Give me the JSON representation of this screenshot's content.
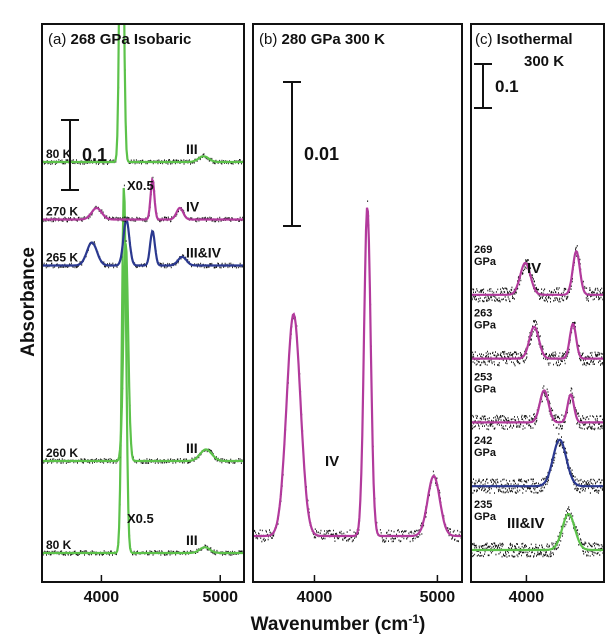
{
  "figure": {
    "ylabel": "Absorbance",
    "xlabel": "Wavenumber (cm",
    "xlabel_sup": "-1",
    "xlabel_end": ")"
  },
  "chart_data": [
    {
      "type": "line",
      "panel": "(a)",
      "title": "268 GPa Isobaric",
      "xlim": [
        3500,
        5200
      ],
      "xticks": [
        4000,
        5000
      ],
      "scale_bar": {
        "label": "0.1",
        "value": 0.1
      },
      "series": [
        {
          "label": "80 K",
          "phase": "III",
          "factor": "X0.5",
          "color": "#5cc24a",
          "offset": 0.0,
          "peaks": [
            [
              4190,
              0.64,
              25
            ],
            [
              4870,
              0.01,
              60
            ]
          ]
        },
        {
          "label": "260 K",
          "phase": "III",
          "factor": "",
          "color": "#5cc24a",
          "offset": 0.16,
          "peaks": [
            [
              4205,
              0.38,
              28
            ],
            [
              4880,
              0.02,
              70
            ]
          ]
        },
        {
          "label": "265 K",
          "phase": "III&IV",
          "factor": "",
          "color": "#2b3990",
          "offset": 0.5,
          "peaks": [
            [
              3920,
              0.04,
              60
            ],
            [
              4210,
              0.08,
              35
            ],
            [
              4430,
              0.06,
              28
            ],
            [
              4680,
              0.015,
              50
            ]
          ]
        },
        {
          "label": "270 K",
          "phase": "IV",
          "factor": "",
          "color": "#b23a9c",
          "offset": 0.58,
          "peaks": [
            [
              3960,
              0.02,
              60
            ],
            [
              4430,
              0.07,
              22
            ],
            [
              4660,
              0.02,
              40
            ]
          ]
        },
        {
          "label": "80 K",
          "phase": "III",
          "factor": "X0.5",
          "color": "#5cc24a",
          "offset": 0.68,
          "peaks": [
            [
              4170,
              0.7,
              22
            ],
            [
              4860,
              0.01,
              60
            ]
          ]
        }
      ]
    },
    {
      "type": "line",
      "panel": "(b)",
      "title": "280 GPa 300 K",
      "xlim": [
        3500,
        5200
      ],
      "xticks": [
        4000,
        5000
      ],
      "scale_bar": {
        "label": "0.01",
        "value": 0.01
      },
      "series": [
        {
          "label": "",
          "phase": "IV",
          "factor": "",
          "color": "#b23a9c",
          "offset": 0.0,
          "peaks": [
            [
              3830,
              0.0185,
              80
            ],
            [
              4430,
              0.0275,
              38
            ],
            [
              4970,
              0.005,
              70
            ]
          ]
        }
      ]
    },
    {
      "type": "line",
      "panel": "(c)",
      "title": "Isothermal",
      "subtitle": "300 K",
      "xlim": [
        3500,
        4700
      ],
      "xticks": [
        4000
      ],
      "scale_bar": {
        "label": "0.1",
        "value": 0.1
      },
      "series": [
        {
          "label": "235\nGPa",
          "phase": "III&IV",
          "factor": "",
          "color": "#5cc24a",
          "offset": 0.0,
          "peaks": [
            [
              4380,
              0.062,
              80
            ]
          ]
        },
        {
          "label": "242\nGPa",
          "phase": "",
          "factor": "",
          "color": "#2b3990",
          "offset": 0.11,
          "peaks": [
            [
              4300,
              0.08,
              85
            ]
          ]
        },
        {
          "label": "253\nGPa",
          "phase": "",
          "factor": "",
          "color": "#b23a9c",
          "offset": 0.22,
          "peaks": [
            [
              4160,
              0.055,
              55
            ],
            [
              4400,
              0.048,
              40
            ]
          ]
        },
        {
          "label": "263\nGPa",
          "phase": "",
          "factor": "",
          "color": "#b23a9c",
          "offset": 0.33,
          "peaks": [
            [
              4070,
              0.055,
              60
            ],
            [
              4420,
              0.06,
              40
            ]
          ]
        },
        {
          "label": "269\nGPa",
          "phase": "IV",
          "factor": "",
          "color": "#b23a9c",
          "offset": 0.44,
          "peaks": [
            [
              3990,
              0.055,
              65
            ],
            [
              4450,
              0.075,
              45
            ]
          ]
        }
      ]
    }
  ]
}
